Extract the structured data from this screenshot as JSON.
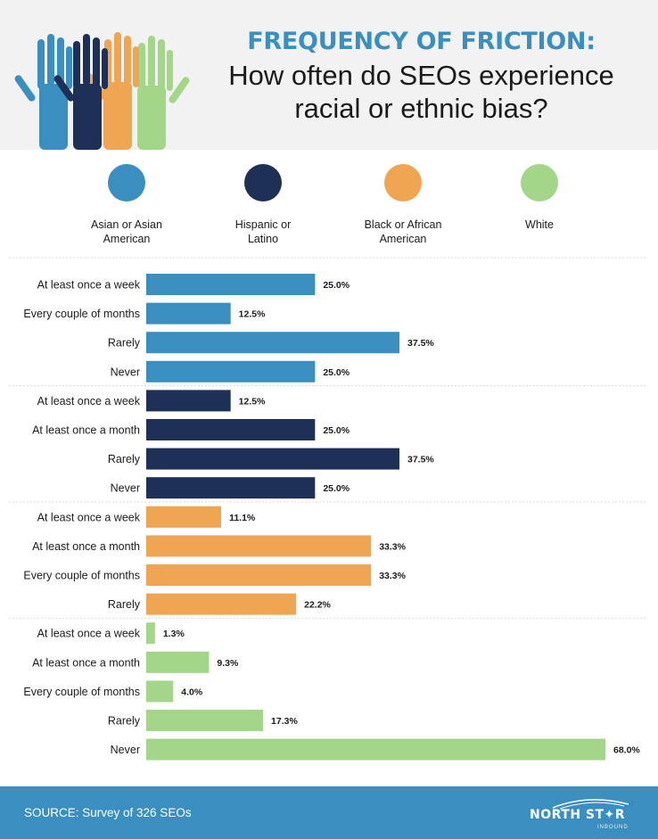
{
  "header": {
    "title_line1": "FREQUENCY OF FRICTION:",
    "title_line2": "How often do SEOs experience",
    "title_line3": "racial or ethnic bias?"
  },
  "legend": [
    {
      "label": "Asian or Asian\nAmerican",
      "color": "#3a8fc0"
    },
    {
      "label": "Hispanic or\nLatino",
      "color": "#1e3055"
    },
    {
      "label": "Black or African\nAmerican",
      "color": "#f0a552"
    },
    {
      "label": "White",
      "color": "#a3d688"
    }
  ],
  "chart_data": {
    "type": "bar",
    "orientation": "horizontal",
    "value_format": "percent",
    "xlim": [
      0,
      70
    ],
    "groups": [
      {
        "name": "Asian or Asian American",
        "color": "#3a8fc0",
        "categories": [
          "At least once a week",
          "Every couple of months",
          "Rarely",
          "Never"
        ],
        "values": [
          25.0,
          12.5,
          37.5,
          25.0
        ],
        "labels": [
          "25.0%",
          "12.5%",
          "37.5%",
          "25.0%"
        ]
      },
      {
        "name": "Hispanic or Latino",
        "color": "#1e3055",
        "categories": [
          "At least once a week",
          "At least once a month",
          "Rarely",
          "Never"
        ],
        "values": [
          12.5,
          25.0,
          37.5,
          25.0
        ],
        "labels": [
          "12.5%",
          "25.0%",
          "37.5%",
          "25.0%"
        ]
      },
      {
        "name": "Black or African American",
        "color": "#f0a552",
        "categories": [
          "At least once a week",
          "At least once a month",
          "Every couple of months",
          "Rarely"
        ],
        "values": [
          11.1,
          33.3,
          33.3,
          22.2
        ],
        "labels": [
          "11.1%",
          "33.3%",
          "33.3%",
          "22.2%"
        ]
      },
      {
        "name": "White",
        "color": "#a3d688",
        "categories": [
          "At least once a week",
          "At least once a month",
          "Every couple of months",
          "Rarely",
          "Never"
        ],
        "values": [
          1.3,
          9.3,
          4.0,
          17.3,
          68.0
        ],
        "labels": [
          "1.3%",
          "9.3%",
          "4.0%",
          "17.3%",
          "68.0%"
        ]
      }
    ]
  },
  "footer": {
    "source": "SOURCE: Survey of 326 SEOs",
    "logo_name": "NORTH ST✦R",
    "logo_sub": "INBOUND"
  }
}
